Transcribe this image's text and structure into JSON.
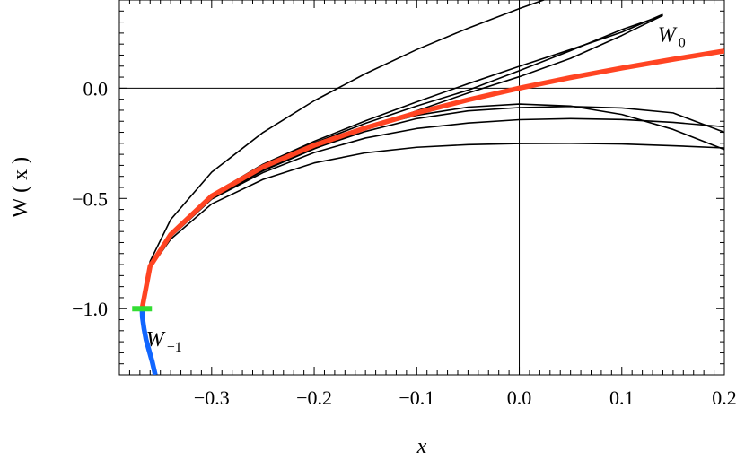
{
  "chart_data": {
    "type": "line",
    "title": "",
    "xlabel": "x",
    "ylabel": "W ( x )",
    "xlim": [
      -0.39,
      0.2
    ],
    "ylim": [
      -1.3,
      0.4
    ],
    "grid": false,
    "x_ticks": [
      -0.3,
      -0.2,
      -0.1,
      0.0,
      0.1,
      0.2
    ],
    "x_tick_labels": [
      "−0.3",
      "−0.2",
      "−0.1",
      "0.0",
      "0.1",
      "0.2"
    ],
    "y_ticks": [
      0.0,
      -0.5,
      -1.0
    ],
    "y_tick_labels": [
      "0.0",
      "−0.5",
      "−1.0"
    ],
    "reference_lines": {
      "x": 0,
      "y": 0
    },
    "branch_point": {
      "x": -0.3679,
      "y": -1.0,
      "color": "#33dd33"
    },
    "series": [
      {
        "name": "W_0",
        "color": "#ff4422",
        "x": [
          -0.3679,
          -0.36,
          -0.34,
          -0.3,
          -0.25,
          -0.2,
          -0.15,
          -0.1,
          -0.05,
          0.0,
          0.05,
          0.1,
          0.15,
          0.2
        ],
        "y": [
          -1.0,
          -0.807,
          -0.664,
          -0.489,
          -0.357,
          -0.259,
          -0.18,
          -0.112,
          -0.053,
          0.0,
          0.048,
          0.091,
          0.131,
          0.169
        ]
      },
      {
        "name": "W_-1",
        "color": "#1166ff",
        "x": [
          -0.3679,
          -0.3675,
          -0.366,
          -0.364,
          -0.361,
          -0.358,
          -0.355
        ],
        "y": [
          -1.0,
          -1.04,
          -1.09,
          -1.14,
          -1.19,
          -1.24,
          -1.3
        ]
      },
      {
        "color": "#000000",
        "x": [
          -0.3679,
          -0.36,
          -0.34,
          -0.3,
          -0.25,
          -0.2,
          -0.15,
          -0.1,
          -0.05,
          0.0,
          0.05,
          0.1,
          0.15
        ],
        "y": [
          -1.0,
          -0.785,
          -0.596,
          -0.381,
          -0.201,
          -0.057,
          0.066,
          0.175,
          0.272,
          0.361,
          0.443,
          0.52,
          0.59
        ]
      },
      {
        "color": "#000000",
        "x": [
          -0.3679,
          -0.36,
          -0.34,
          -0.3,
          -0.25,
          -0.2,
          -0.15,
          -0.1,
          -0.05,
          0.0,
          0.05,
          0.1,
          0.14
        ],
        "y": [
          -1.0,
          -0.81,
          -0.668,
          -0.501,
          -0.375,
          -0.275,
          -0.186,
          -0.103,
          -0.022,
          0.052,
          0.135,
          0.239,
          0.33
        ]
      },
      {
        "color": "#000000",
        "x": [
          -0.3679,
          -0.36,
          -0.34,
          -0.3,
          -0.25,
          -0.2,
          -0.15,
          -0.1,
          -0.05,
          0.0,
          0.05,
          0.1,
          0.14
        ],
        "y": [
          -1.0,
          -0.807,
          -0.664,
          -0.485,
          -0.349,
          -0.248,
          -0.159,
          -0.081,
          -0.009,
          0.079,
          0.17,
          0.266,
          0.33
        ]
      },
      {
        "color": "#000000",
        "x": [
          -0.3679,
          -0.36,
          -0.34,
          -0.3,
          -0.25,
          -0.2,
          -0.15,
          -0.1,
          -0.05,
          0.0,
          0.05,
          0.1,
          0.14
        ],
        "y": [
          -1.0,
          -0.807,
          -0.664,
          -0.483,
          -0.345,
          -0.241,
          -0.148,
          -0.062,
          0.02,
          0.099,
          0.175,
          0.254,
          0.335
        ]
      },
      {
        "color": "#000000",
        "x": [
          -0.3679,
          -0.36,
          -0.34,
          -0.3,
          -0.25,
          -0.2,
          -0.15,
          -0.1,
          -0.05,
          0.0,
          0.05,
          0.1,
          0.15,
          0.2
        ],
        "y": [
          -1.0,
          -0.81,
          -0.67,
          -0.492,
          -0.363,
          -0.262,
          -0.181,
          -0.123,
          -0.086,
          -0.072,
          -0.081,
          -0.119,
          -0.187,
          -0.278
        ]
      },
      {
        "color": "#000000",
        "x": [
          -0.3679,
          -0.36,
          -0.34,
          -0.3,
          -0.25,
          -0.2,
          -0.15,
          -0.1,
          -0.05,
          0.0,
          0.05,
          0.1,
          0.15,
          0.2
        ],
        "y": [
          -1.0,
          -0.81,
          -0.671,
          -0.496,
          -0.371,
          -0.273,
          -0.196,
          -0.138,
          -0.103,
          -0.088,
          -0.083,
          -0.09,
          -0.112,
          -0.2
        ]
      },
      {
        "color": "#000000",
        "x": [
          -0.3679,
          -0.36,
          -0.34,
          -0.3,
          -0.25,
          -0.2,
          -0.15,
          -0.1,
          -0.05,
          0.0,
          0.05,
          0.1,
          0.15,
          0.2
        ],
        "y": [
          -1.0,
          -0.812,
          -0.675,
          -0.503,
          -0.383,
          -0.292,
          -0.226,
          -0.183,
          -0.158,
          -0.143,
          -0.138,
          -0.142,
          -0.155,
          -0.175
        ]
      },
      {
        "color": "#000000",
        "x": [
          -0.3679,
          -0.36,
          -0.34,
          -0.3,
          -0.25,
          -0.2,
          -0.15,
          -0.1,
          -0.05,
          0.0,
          0.05,
          0.1,
          0.15,
          0.2
        ],
        "y": [
          -1.0,
          -0.815,
          -0.685,
          -0.525,
          -0.414,
          -0.339,
          -0.293,
          -0.268,
          -0.256,
          -0.251,
          -0.25,
          -0.253,
          -0.261,
          -0.271
        ]
      }
    ],
    "annotations": [
      {
        "text": "W",
        "sub": "0",
        "x": 0.135,
        "y": 0.21
      },
      {
        "text": "W",
        "sub": "−1",
        "x": -0.364,
        "y": -1.17
      }
    ]
  }
}
